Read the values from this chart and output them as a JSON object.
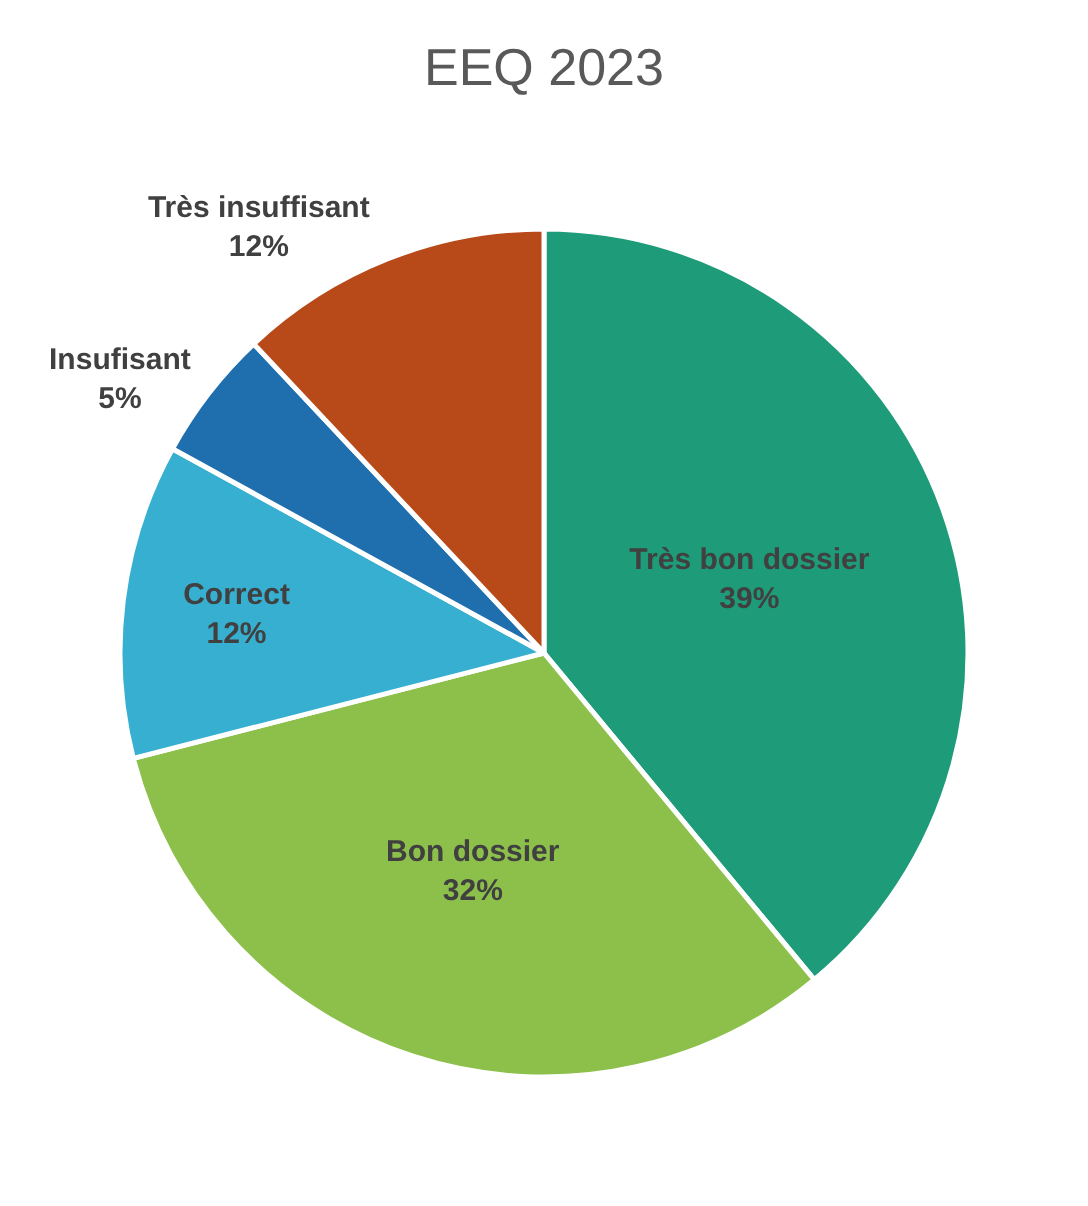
{
  "chart_data": {
    "type": "pie",
    "title": "EEQ 2023",
    "categories": [
      "Très bon dossier",
      "Bon dossier",
      "Correct",
      "Insufisant",
      "Très insuffisant"
    ],
    "values": [
      39,
      32,
      12,
      5,
      12
    ],
    "value_labels": [
      "39%",
      "32%",
      "12%",
      "5%",
      "12%"
    ],
    "colors": [
      "#1e9b78",
      "#8cc04b",
      "#36afd0",
      "#1f6fae",
      "#b84a1a"
    ],
    "legend": false
  }
}
